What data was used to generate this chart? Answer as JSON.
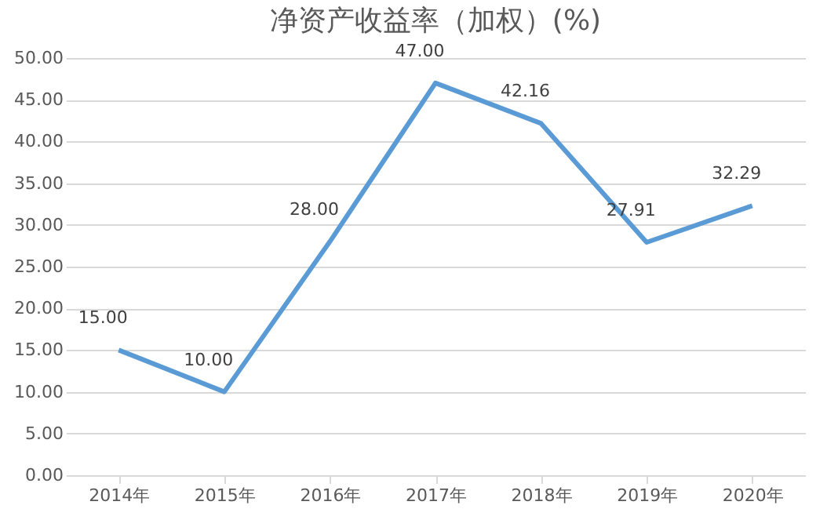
{
  "chart_data": {
    "type": "line",
    "title": "净资产收益率（加权）(%)",
    "categories": [
      "2014年",
      "2015年",
      "2016年",
      "2017年",
      "2018年",
      "2019年",
      "2020年"
    ],
    "series": [
      {
        "color": "#5b9bd5",
        "values": [
          15.0,
          10.0,
          28.0,
          47.0,
          42.16,
          27.91,
          32.29
        ],
        "value_labels": [
          "15.00",
          "10.00",
          "28.00",
          "47.00",
          "42.16",
          "27.91",
          "32.29"
        ]
      }
    ],
    "ylim": [
      0,
      50
    ],
    "yticks": [
      {
        "value": 0,
        "label": "0.00"
      },
      {
        "value": 5,
        "label": "5.00"
      },
      {
        "value": 10,
        "label": "10.00"
      },
      {
        "value": 15,
        "label": "15.00"
      },
      {
        "value": 20,
        "label": "20.00"
      },
      {
        "value": 25,
        "label": "25.00"
      },
      {
        "value": 30,
        "label": "30.00"
      },
      {
        "value": 35,
        "label": "35.00"
      },
      {
        "value": 40,
        "label": "40.00"
      },
      {
        "value": 45,
        "label": "45.00"
      },
      {
        "value": 50,
        "label": "50.00"
      }
    ],
    "grid": "y",
    "marker": "none",
    "line_style": "solid"
  }
}
